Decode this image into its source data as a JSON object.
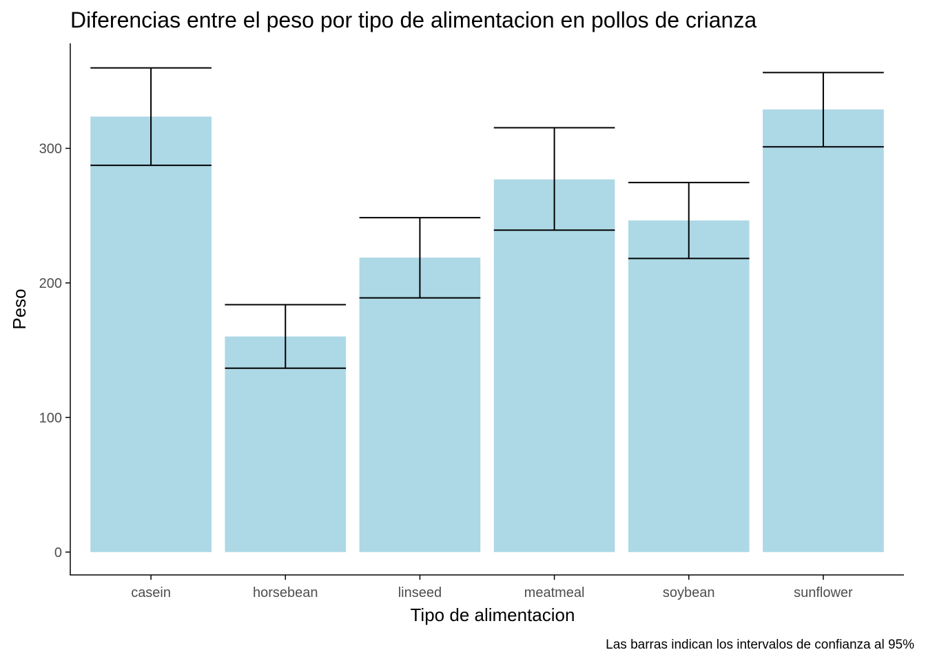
{
  "chart_data": {
    "type": "bar",
    "title": "Diferencias entre el peso por tipo de alimentacion en pollos de crianza",
    "xlabel": "Tipo de alimentacion",
    "ylabel": "Peso",
    "caption": "Las barras indican los intervalos de confianza al 95%",
    "categories": [
      "casein",
      "horsebean",
      "linseed",
      "meatmeal",
      "soybean",
      "sunflower"
    ],
    "values": [
      323.6,
      160.2,
      218.8,
      276.9,
      246.4,
      328.9
    ],
    "error_lower": [
      287.4,
      136.6,
      188.9,
      239.2,
      218.2,
      301.1
    ],
    "error_upper": [
      359.8,
      183.8,
      248.5,
      315.3,
      274.6,
      356.3
    ],
    "ylim": [
      -17,
      378
    ],
    "yticks": [
      0,
      100,
      200,
      300
    ],
    "grid": false,
    "legend": "none",
    "colors": {
      "bar": "#add8e6",
      "errorbar": "#000000",
      "axis": "#000000",
      "tick_text": "#4d4d4d"
    }
  }
}
